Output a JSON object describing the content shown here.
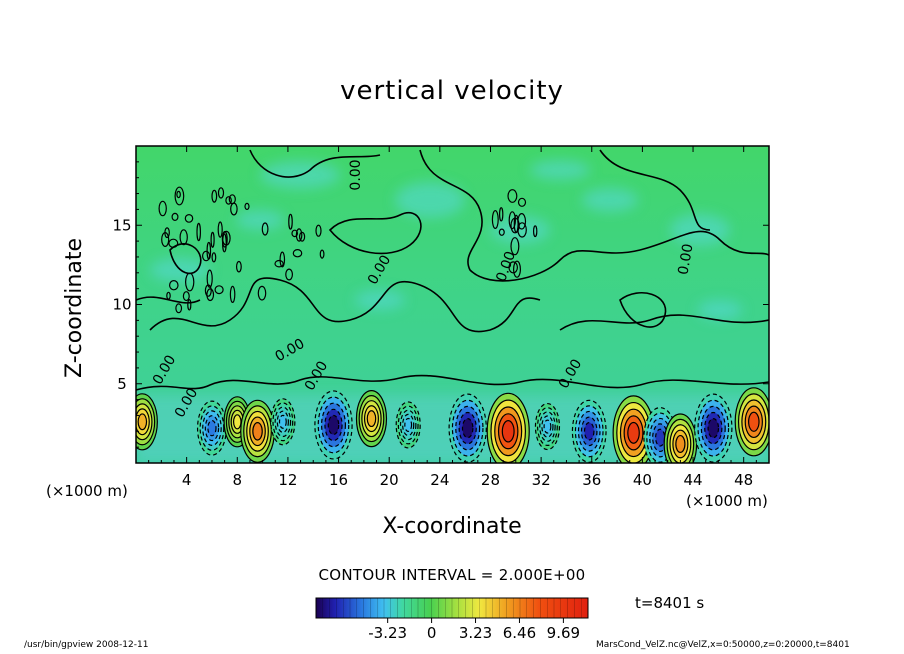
{
  "chart_data": {
    "type": "heatmap",
    "title": "vertical velocity",
    "xlabel": "X-coordinate",
    "ylabel": "Z-coordinate",
    "x_unit_left": "(×1000 m)",
    "x_unit_right": "(×1000 m)",
    "xlim": [
      0,
      50
    ],
    "ylim": [
      0,
      20
    ],
    "x_ticks": [
      4,
      8,
      12,
      16,
      20,
      24,
      28,
      32,
      36,
      40,
      44,
      48
    ],
    "y_ticks": [
      5,
      10,
      15
    ],
    "contour_label": "0.00",
    "contour_interval_text": "CONTOUR INTERVAL = 2.000E+00",
    "colorbar": {
      "ticks": [
        {
          "value": -3.23,
          "label": "-3.23"
        },
        {
          "value": 0,
          "label": "0"
        },
        {
          "value": 3.23,
          "label": "3.23"
        },
        {
          "value": 6.46,
          "label": "6.46"
        },
        {
          "value": 9.69,
          "label": "9.69"
        }
      ],
      "range": [
        -8.5,
        11.5
      ]
    },
    "time_label": "t=8401 s",
    "cells": [
      {
        "x": 6.0,
        "z": 2.2,
        "value": -4.5
      },
      {
        "x": 8.0,
        "z": 2.6,
        "value": 3.5
      },
      {
        "x": 9.6,
        "z": 2.0,
        "value": 6.5
      },
      {
        "x": 11.6,
        "z": 2.6,
        "value": -2.5
      },
      {
        "x": 15.6,
        "z": 2.4,
        "value": -8.0
      },
      {
        "x": 18.6,
        "z": 2.8,
        "value": 5.0
      },
      {
        "x": 21.5,
        "z": 2.4,
        "value": -2.5
      },
      {
        "x": 26.2,
        "z": 2.2,
        "value": -8.0
      },
      {
        "x": 29.4,
        "z": 2.0,
        "value": 10.0
      },
      {
        "x": 32.5,
        "z": 2.3,
        "value": -2.5
      },
      {
        "x": 35.8,
        "z": 2.0,
        "value": -6.5
      },
      {
        "x": 39.3,
        "z": 1.9,
        "value": 9.5
      },
      {
        "x": 41.4,
        "z": 1.6,
        "value": -6.0
      },
      {
        "x": 43.0,
        "z": 1.2,
        "value": 6.0
      },
      {
        "x": 45.6,
        "z": 2.2,
        "value": -8.0
      },
      {
        "x": 48.8,
        "z": 2.6,
        "value": 8.0
      },
      {
        "x": 0.5,
        "z": 2.6,
        "value": 5.0
      }
    ]
  },
  "footer": {
    "left": "/usr/bin/gpview   2008-12-11",
    "right": "MarsCond_VelZ.nc@VelZ,x=0:50000,z=0:20000,t=8401"
  }
}
